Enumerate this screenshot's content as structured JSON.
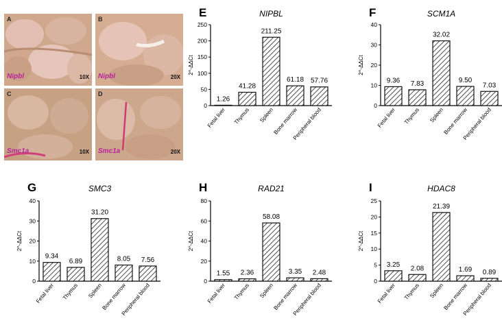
{
  "images": [
    {
      "letter": "A",
      "gene": "Nipbl",
      "mag": "10X"
    },
    {
      "letter": "B",
      "gene": "Nipbl",
      "mag": "20X"
    },
    {
      "letter": "C",
      "gene": "Smc1a",
      "mag": "10X"
    },
    {
      "letter": "D",
      "gene": "Smc1a",
      "mag": "20X"
    }
  ],
  "colors": {
    "bar_fill": "#ffffff",
    "bar_hatch": "#222222",
    "axis": "#000000"
  },
  "chart_data": [
    {
      "panel": "E",
      "type": "bar",
      "title": "NIPBL",
      "ylabel": "2^-ΔΔCt",
      "categories": [
        "Fetal liver",
        "Thymus",
        "Spleen",
        "Bone marrow",
        "Peripheral blood"
      ],
      "values": [
        1.26,
        41.28,
        211.25,
        61.18,
        57.76
      ],
      "labels": [
        "1.26",
        "41.28",
        "211.25",
        "61.18",
        "57.76"
      ],
      "ylim": [
        0,
        250
      ],
      "yticks": [
        0,
        50,
        100,
        150,
        200,
        250
      ]
    },
    {
      "panel": "F",
      "type": "bar",
      "title": "SCM1A",
      "ylabel": "2^-ΔΔCt",
      "categories": [
        "Fetal liver",
        "Thymus",
        "Spleen",
        "Bone marrow",
        "Peripheral blood"
      ],
      "values": [
        9.36,
        7.83,
        32.02,
        9.5,
        7.03
      ],
      "labels": [
        "9.36",
        "7.83",
        "32.02",
        "9.50",
        "7.03"
      ],
      "ylim": [
        0,
        40
      ],
      "yticks": [
        0,
        10,
        20,
        30,
        40
      ]
    },
    {
      "panel": "G",
      "type": "bar",
      "title": "SMC3",
      "ylabel": "2^-ΔΔCt",
      "categories": [
        "Fetal liver",
        "Thymus",
        "Spleen",
        "Bone marrow",
        "Peripheral blood"
      ],
      "values": [
        9.34,
        6.89,
        31.2,
        8.05,
        7.56
      ],
      "labels": [
        "9.34",
        "6.89",
        "31.20",
        "8.05",
        "7.56"
      ],
      "ylim": [
        0,
        40
      ],
      "yticks": [
        0,
        10,
        20,
        30,
        40
      ]
    },
    {
      "panel": "H",
      "type": "bar",
      "title": "RAD21",
      "ylabel": "2^-ΔΔCt",
      "categories": [
        "Fetal liver",
        "Thymus",
        "Spleen",
        "Bone marrow",
        "Peripheral blood"
      ],
      "values": [
        1.55,
        2.36,
        58.08,
        3.35,
        2.48
      ],
      "labels": [
        "1.55",
        "2.36",
        "58.08",
        "3.35",
        "2.48"
      ],
      "ylim": [
        0,
        80
      ],
      "yticks": [
        0,
        20,
        40,
        60,
        80
      ]
    },
    {
      "panel": "I",
      "type": "bar",
      "title": "HDAC8",
      "ylabel": "2^-ΔΔCt",
      "categories": [
        "Fetal liver",
        "Thymus",
        "Spleen",
        "Bone marrow",
        "Peripheral blood"
      ],
      "values": [
        3.25,
        2.08,
        21.39,
        1.69,
        0.89
      ],
      "labels": [
        "3.25",
        "2.08",
        "21.39",
        "1.69",
        "0.89"
      ],
      "ylim": [
        0,
        25
      ],
      "yticks": [
        0,
        5,
        10,
        15,
        20,
        25
      ]
    }
  ]
}
